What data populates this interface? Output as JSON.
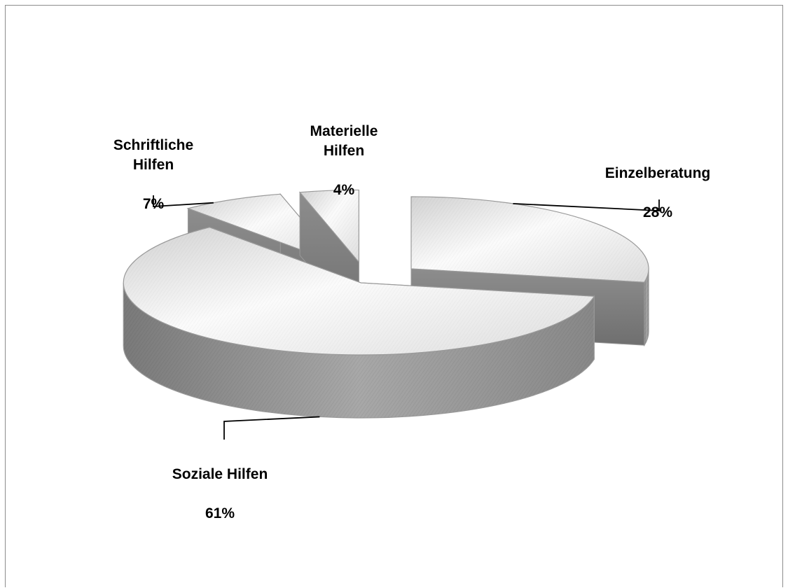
{
  "chart_data": {
    "type": "pie",
    "title": "",
    "slices": [
      {
        "label": "Einzelberatung",
        "value": 28,
        "percent_label": "28%"
      },
      {
        "label": "Soziale Hilfen",
        "value": 61,
        "percent_label": "61%"
      },
      {
        "label": "Schriftliche\nHilfen",
        "value": 7,
        "percent_label": "7%"
      },
      {
        "label": "Materielle\nHilfen",
        "value": 4,
        "percent_label": "4%"
      }
    ],
    "style": "3d-exploded",
    "colors": {
      "top_light": "#fbfbfb",
      "top_dark": "#d9d9d9",
      "side_light": "#a9a9a9",
      "side_dark": "#777777",
      "edge": "#9a9a9a",
      "leader": "#000000"
    }
  }
}
